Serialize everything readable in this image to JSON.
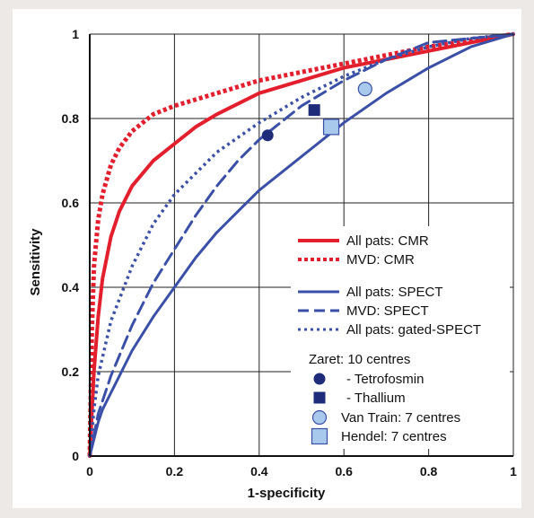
{
  "chart_data": {
    "type": "line",
    "xlabel": "1-specificity",
    "ylabel": "Sensitivity",
    "xlim": [
      0,
      1
    ],
    "ylim": [
      0,
      1
    ],
    "x_ticks": [
      "0",
      "0.2",
      "0.4",
      "0.6",
      "0.8",
      "1"
    ],
    "y_ticks": [
      "0",
      "0.2",
      "0.4",
      "0.6",
      "0.8",
      "1"
    ],
    "grid": true,
    "legend_position": "bottom-right",
    "series": [
      {
        "name": "All pats: CMR",
        "color": "#e31e2d",
        "dash": "solid",
        "x": [
          0,
          0.01,
          0.02,
          0.03,
          0.05,
          0.07,
          0.1,
          0.15,
          0.2,
          0.25,
          0.3,
          0.4,
          0.5,
          0.6,
          0.7,
          0.8,
          0.9,
          1.0
        ],
        "y": [
          0,
          0.2,
          0.33,
          0.42,
          0.52,
          0.58,
          0.64,
          0.7,
          0.74,
          0.78,
          0.81,
          0.86,
          0.89,
          0.92,
          0.94,
          0.96,
          0.98,
          1.0
        ]
      },
      {
        "name": "MVD: CMR",
        "color": "#e31e2d",
        "dash": "dotted",
        "x": [
          0,
          0.005,
          0.01,
          0.02,
          0.03,
          0.05,
          0.07,
          0.1,
          0.15,
          0.2,
          0.3,
          0.4,
          0.5,
          0.6,
          0.7,
          0.8,
          0.9,
          1.0
        ],
        "y": [
          0,
          0.3,
          0.45,
          0.56,
          0.62,
          0.69,
          0.73,
          0.77,
          0.81,
          0.83,
          0.86,
          0.89,
          0.91,
          0.93,
          0.95,
          0.97,
          0.985,
          1.0
        ]
      },
      {
        "name": "All pats: SPECT",
        "color": "#3a4fa8",
        "dash": "solid",
        "x": [
          0,
          0.01,
          0.02,
          0.03,
          0.05,
          0.1,
          0.15,
          0.2,
          0.25,
          0.3,
          0.4,
          0.5,
          0.6,
          0.7,
          0.8,
          0.9,
          1.0
        ],
        "y": [
          0,
          0.04,
          0.08,
          0.11,
          0.15,
          0.25,
          0.33,
          0.4,
          0.47,
          0.53,
          0.63,
          0.71,
          0.79,
          0.86,
          0.92,
          0.97,
          1.0
        ]
      },
      {
        "name": "MVD: SPECT",
        "color": "#3a4fa8",
        "dash": "dashed",
        "x": [
          0,
          0.01,
          0.02,
          0.05,
          0.1,
          0.15,
          0.2,
          0.25,
          0.3,
          0.35,
          0.4,
          0.5,
          0.6,
          0.7,
          0.8,
          0.9,
          1.0
        ],
        "y": [
          0,
          0.05,
          0.1,
          0.19,
          0.31,
          0.41,
          0.49,
          0.57,
          0.64,
          0.7,
          0.75,
          0.83,
          0.89,
          0.94,
          0.98,
          0.99,
          1.0
        ]
      },
      {
        "name": "All pats: gated-SPECT",
        "color": "#3a4fa8",
        "dash": "dotted",
        "x": [
          0,
          0.01,
          0.02,
          0.05,
          0.1,
          0.15,
          0.2,
          0.25,
          0.3,
          0.4,
          0.5,
          0.6,
          0.7,
          0.8,
          0.9,
          1.0
        ],
        "y": [
          0,
          0.11,
          0.19,
          0.32,
          0.45,
          0.55,
          0.62,
          0.67,
          0.72,
          0.79,
          0.85,
          0.9,
          0.94,
          0.97,
          0.99,
          1.0
        ]
      }
    ],
    "points": [
      {
        "name": "- Tetrofosmin",
        "group": "Zaret: 10 centres",
        "x": 0.42,
        "y": 0.76,
        "marker": "circle",
        "color": "#1f2c7a"
      },
      {
        "name": "- Thallium",
        "group": "Zaret: 10 centres",
        "x": 0.53,
        "y": 0.82,
        "marker": "square",
        "color": "#1f2c7a"
      },
      {
        "name": "Van Train: 7 centres",
        "x": 0.65,
        "y": 0.87,
        "marker": "circle",
        "color": "#a8c8ec"
      },
      {
        "name": "Hendel: 7 centres",
        "x": 0.57,
        "y": 0.78,
        "marker": "square",
        "color": "#a8c8ec"
      }
    ],
    "legend_group_title": "Zaret: 10 centres"
  }
}
